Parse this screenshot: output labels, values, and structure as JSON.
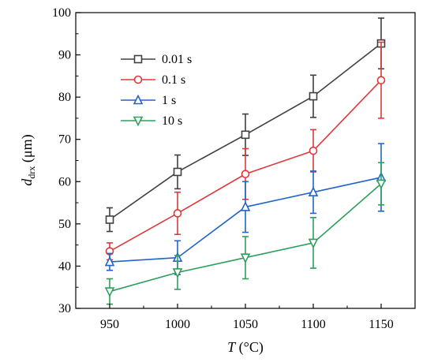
{
  "chart_data": {
    "type": "line",
    "x": [
      950,
      1000,
      1050,
      1100,
      1150
    ],
    "xlim": [
      925,
      1175
    ],
    "ylim": [
      30,
      100
    ],
    "xticks": [
      950,
      1000,
      1050,
      1100,
      1150
    ],
    "yticks": [
      30,
      40,
      50,
      60,
      70,
      80,
      90,
      100
    ],
    "xlabel_main": "T",
    "xlabel_unit": " (°C)",
    "ylabel_main": "d",
    "ylabel_sub": "drx",
    "ylabel_unit": " (μm)",
    "grid": false,
    "legend_position": "top-left",
    "series": [
      {
        "name": "0.01 s",
        "color": "#404040",
        "marker": "square",
        "values": [
          51.0,
          62.3,
          71.1,
          80.2,
          92.7
        ],
        "errors": [
          2.8,
          4.0,
          4.9,
          5.0,
          6.0
        ]
      },
      {
        "name": "0.1 s",
        "color": "#e0383a",
        "marker": "circle",
        "values": [
          43.5,
          52.5,
          61.8,
          67.3,
          84.0
        ],
        "errors": [
          2.0,
          5.0,
          6.0,
          5.0,
          9.0
        ]
      },
      {
        "name": "1 s",
        "color": "#2264c8",
        "marker": "triangle-up",
        "values": [
          41.0,
          42.0,
          54.0,
          57.5,
          61.0
        ],
        "errors": [
          2.0,
          4.0,
          6.0,
          5.0,
          8.0
        ]
      },
      {
        "name": "10 s",
        "color": "#2ca05a",
        "marker": "triangle-down",
        "values": [
          34.0,
          38.5,
          42.0,
          45.5,
          59.5
        ],
        "errors": [
          3.0,
          4.0,
          5.0,
          6.0,
          5.0
        ]
      }
    ]
  }
}
